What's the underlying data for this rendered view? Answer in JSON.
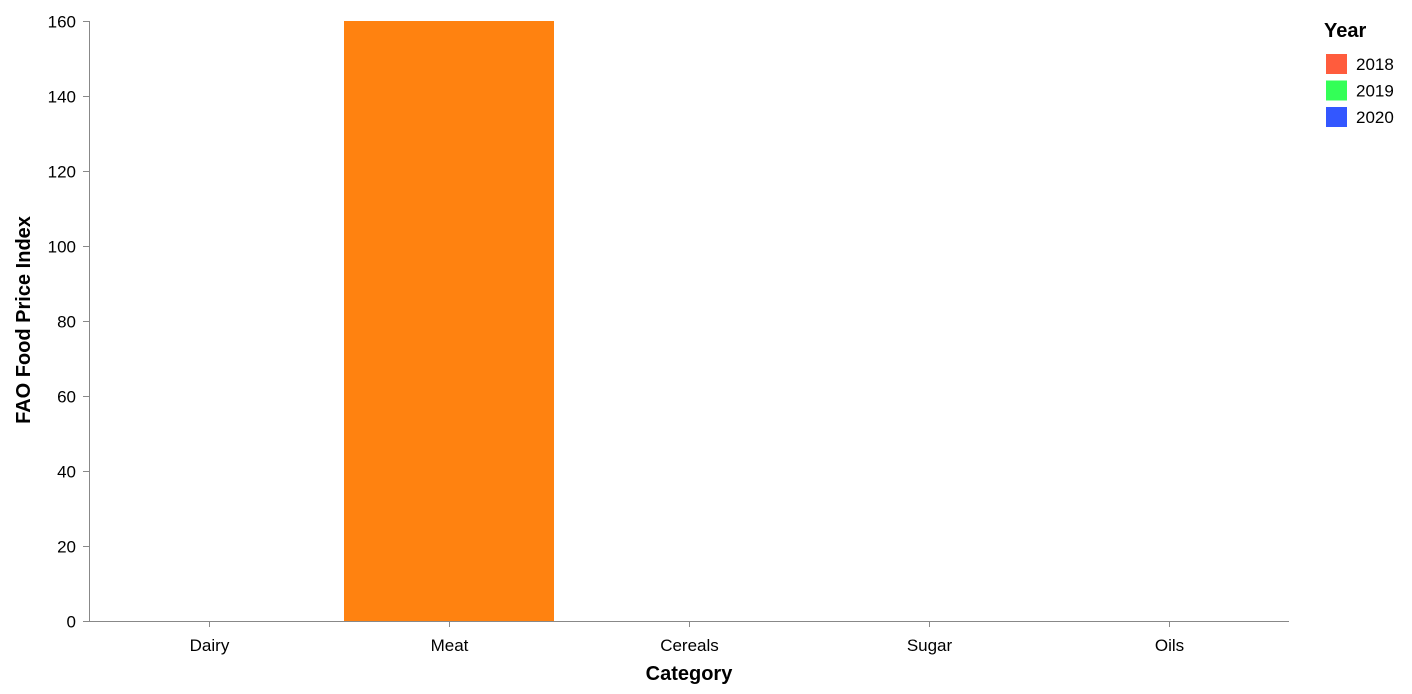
{
  "chart_data": {
    "type": "bar",
    "title": "",
    "xlabel": "Category",
    "ylabel": "FAO Food Price Index",
    "categories": [
      "Dairy",
      "Meat",
      "Cereals",
      "Sugar",
      "Oils"
    ],
    "ylim": [
      0,
      160
    ],
    "yticks": [
      0,
      20,
      40,
      60,
      80,
      100,
      120,
      140,
      160
    ],
    "grid": false,
    "legend": {
      "title": "Year",
      "placement": "top-right",
      "entries": [
        {
          "label": "2018",
          "color": "#ff5c3d"
        },
        {
          "label": "2019",
          "color": "#33ff57"
        },
        {
          "label": "2020",
          "color": "#3357ff"
        }
      ]
    },
    "bars": [
      {
        "category": "Meat",
        "value": 160,
        "color": "#ff8210"
      }
    ],
    "colors": {
      "axis": "#888888",
      "text": "#000000"
    }
  }
}
